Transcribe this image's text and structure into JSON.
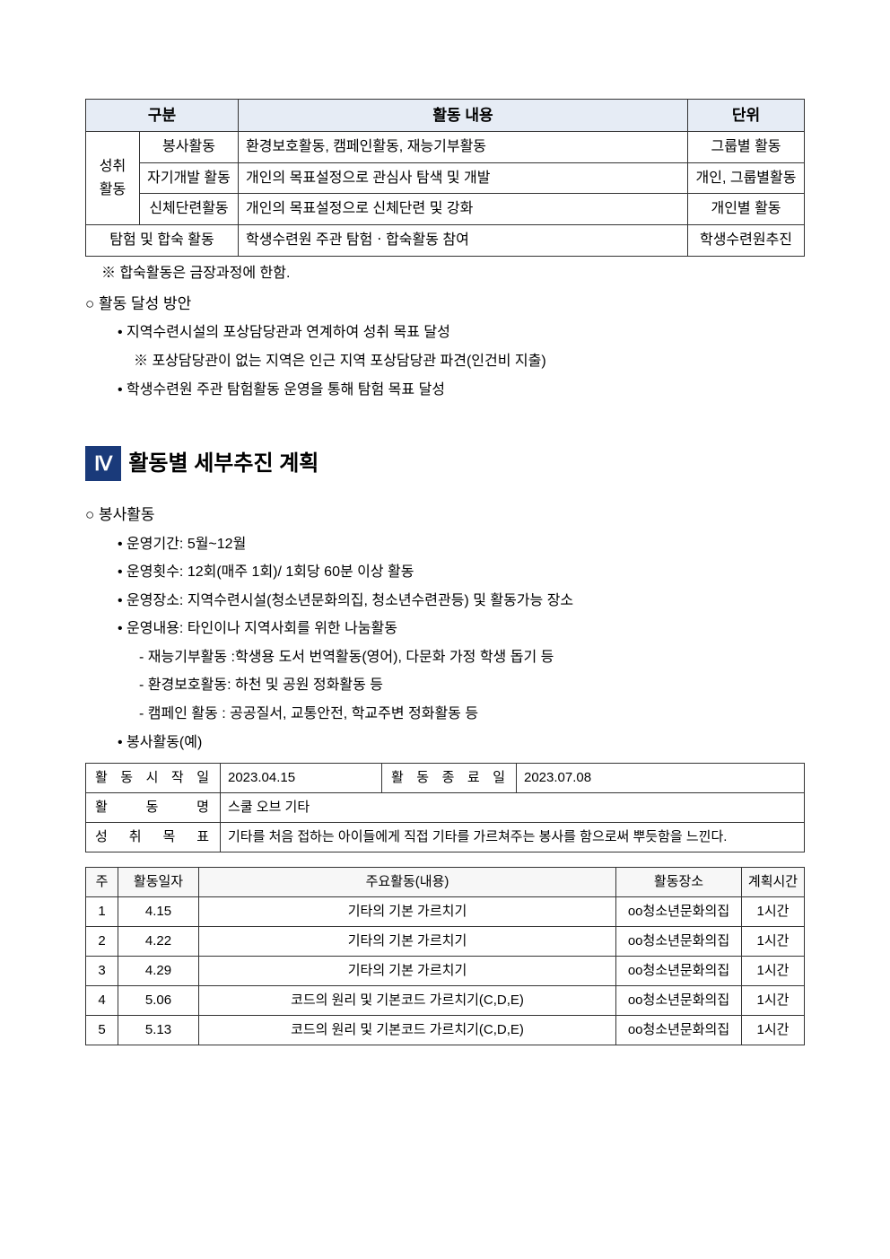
{
  "table1": {
    "headers": {
      "category": "구분",
      "content": "활동 내용",
      "unit": "단위"
    },
    "catGroup": "성취\n활동",
    "rows": [
      {
        "sub": "봉사활동",
        "content": "환경보호활동, 캠페인활동, 재능기부활동",
        "unit": "그룹별 활동"
      },
      {
        "sub": "자기개발 활동",
        "content": "개인의 목표설정으로 관심사 탐색 및 개발",
        "unit": "개인, 그룹별활동"
      },
      {
        "sub": "신체단련활동",
        "content": "개인의 목표설정으로 신체단련 및 강화",
        "unit": "개인별 활동"
      }
    ],
    "row4": {
      "sub": "탐험 및 합숙 활동",
      "content": "학생수련원 주관 탐험ㆍ합숙활동 참여",
      "unit": "학생수련원추진"
    }
  },
  "note1": "※ 합숙활동은 금장과정에 한함.",
  "achieveHeading": "활동 달성 방안",
  "achieveBullets": [
    "지역수련시설의 포상담당관과 연계하여 성취 목표 달성",
    "학생수련원 주관 탐험활동 운영을 통해 탐험 목표 달성"
  ],
  "achieveNote": "※ 포상담당관이 없는 지역은 인근 지역 포상담당관 파견(인건비 지출)",
  "section": {
    "badge": "Ⅳ",
    "title": "활동별 세부추진 계획"
  },
  "volunteer": {
    "heading": "봉사활동",
    "bullets": [
      "운영기간: 5월~12월",
      "운영횟수: 12회(매주 1회)/ 1회당 60분 이상 활동",
      "운영장소: 지역수련시설(청소년문화의집, 청소년수련관등) 및 활동가능 장소",
      "운영내용: 타인이나 지역사회를 위한 나눔활동"
    ],
    "dashes": [
      "- 재능기부활동 :학생용 도서 번역활동(영어), 다문화 가정 학생 돕기 등",
      "- 환경보호활동: 하천 및 공원 정화활동 등",
      "- 캠페인 활동 : 공공질서, 교통안전, 학교주변 정화활동 등"
    ],
    "exampleBullet": "봉사활동(예)"
  },
  "table2": {
    "r1": {
      "l1": "활 동 시 작 일",
      "v1": "2023.04.15",
      "l2": "활 동 종 료 일",
      "v2": "2023.07.08"
    },
    "r2": {
      "l": "활 동 명",
      "v": "스쿨 오브 기타"
    },
    "r3": {
      "l": "성 취 목 표",
      "v": "기타를 처음 접하는 아이들에게 직접 기타를 가르쳐주는 봉사를 함으로써 뿌듯함을 느낀다."
    }
  },
  "table3": {
    "headers": {
      "week": "주",
      "date": "활동일자",
      "activity": "주요활동(내용)",
      "place": "활동장소",
      "hours": "계획시간"
    },
    "rows": [
      {
        "week": "1",
        "date": "4.15",
        "activity": "기타의 기본 가르치기",
        "place": "oo청소년문화의집",
        "hours": "1시간"
      },
      {
        "week": "2",
        "date": "4.22",
        "activity": "기타의 기본 가르치기",
        "place": "oo청소년문화의집",
        "hours": "1시간"
      },
      {
        "week": "3",
        "date": "4.29",
        "activity": "기타의 기본 가르치기",
        "place": "oo청소년문화의집",
        "hours": "1시간"
      },
      {
        "week": "4",
        "date": "5.06",
        "activity": "코드의 원리 및 기본코드 가르치기(C,D,E)",
        "place": "oo청소년문화의집",
        "hours": "1시간"
      },
      {
        "week": "5",
        "date": "5.13",
        "activity": "코드의 원리 및 기본코드 가르치기(C,D,E)",
        "place": "oo청소년문화의집",
        "hours": "1시간"
      }
    ]
  }
}
